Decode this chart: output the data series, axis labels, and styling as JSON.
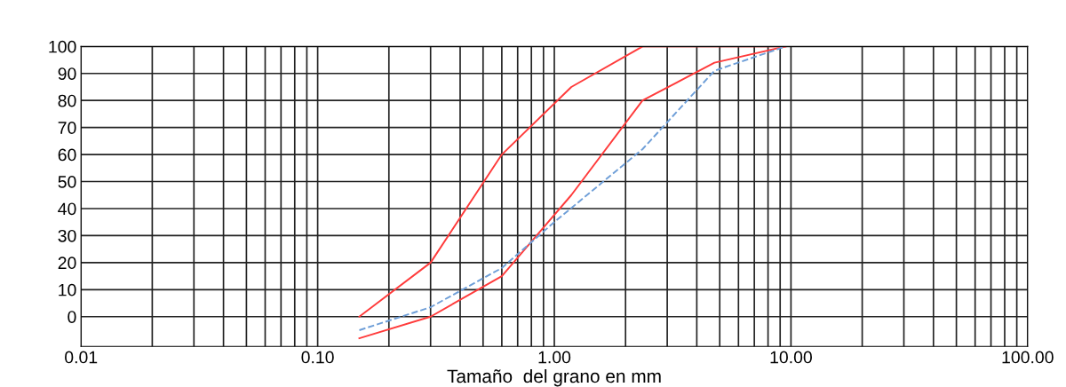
{
  "chart_data": {
    "type": "line",
    "xlabel": "Tamaño  del grano en mm",
    "log": "x",
    "grid": true,
    "legend": false,
    "xlim": [
      0.01,
      100
    ],
    "ylim": [
      -11,
      100
    ],
    "xticks": [
      {
        "value": 0.01,
        "label": "0.01"
      },
      {
        "value": 0.02,
        "label": null
      },
      {
        "value": 0.03,
        "label": null
      },
      {
        "value": 0.04,
        "label": null
      },
      {
        "value": 0.05,
        "label": null
      },
      {
        "value": 0.06,
        "label": null
      },
      {
        "value": 0.07,
        "label": null
      },
      {
        "value": 0.08,
        "label": null
      },
      {
        "value": 0.09,
        "label": null
      },
      {
        "value": 0.1,
        "label": "0.10"
      },
      {
        "value": 0.2,
        "label": null
      },
      {
        "value": 0.3,
        "label": null
      },
      {
        "value": 0.4,
        "label": null
      },
      {
        "value": 0.5,
        "label": null
      },
      {
        "value": 0.6,
        "label": null
      },
      {
        "value": 0.7,
        "label": null
      },
      {
        "value": 0.8,
        "label": null
      },
      {
        "value": 0.9,
        "label": null
      },
      {
        "value": 1,
        "label": "1.00"
      },
      {
        "value": 2,
        "label": null
      },
      {
        "value": 3,
        "label": null
      },
      {
        "value": 4,
        "label": null
      },
      {
        "value": 5,
        "label": null
      },
      {
        "value": 6,
        "label": null
      },
      {
        "value": 7,
        "label": null
      },
      {
        "value": 8,
        "label": null
      },
      {
        "value": 9,
        "label": null
      },
      {
        "value": 10,
        "label": "10.00"
      },
      {
        "value": 20,
        "label": null
      },
      {
        "value": 30,
        "label": null
      },
      {
        "value": 40,
        "label": null
      },
      {
        "value": 50,
        "label": null
      },
      {
        "value": 60,
        "label": null
      },
      {
        "value": 70,
        "label": null
      },
      {
        "value": 80,
        "label": null
      },
      {
        "value": 90,
        "label": null
      },
      {
        "value": 100,
        "label": "100.00"
      }
    ],
    "yticks": [
      0,
      10,
      20,
      30,
      40,
      50,
      60,
      70,
      80,
      90,
      100
    ],
    "series": [
      {
        "color": "#ff3b3b",
        "line_style": "solid",
        "x": [
          0.15,
          0.3,
          0.6,
          1.18,
          2.36,
          9.5
        ],
        "values": [
          0,
          20,
          60,
          85,
          100,
          100
        ]
      },
      {
        "color": "#ff3b3b",
        "line_style": "solid",
        "x": [
          0.15,
          0.3,
          0.6,
          1.18,
          2.36,
          4.75,
          9.5
        ],
        "values": [
          -8,
          0,
          15,
          45,
          80,
          94,
          100
        ]
      },
      {
        "color": "#6f9fd8",
        "line_style": "dashed",
        "x": [
          0.15,
          0.3,
          0.6,
          1.0,
          2.36,
          4.75,
          9.5
        ],
        "values": [
          -5,
          3.5,
          18,
          35,
          62,
          91,
          100
        ]
      }
    ]
  }
}
